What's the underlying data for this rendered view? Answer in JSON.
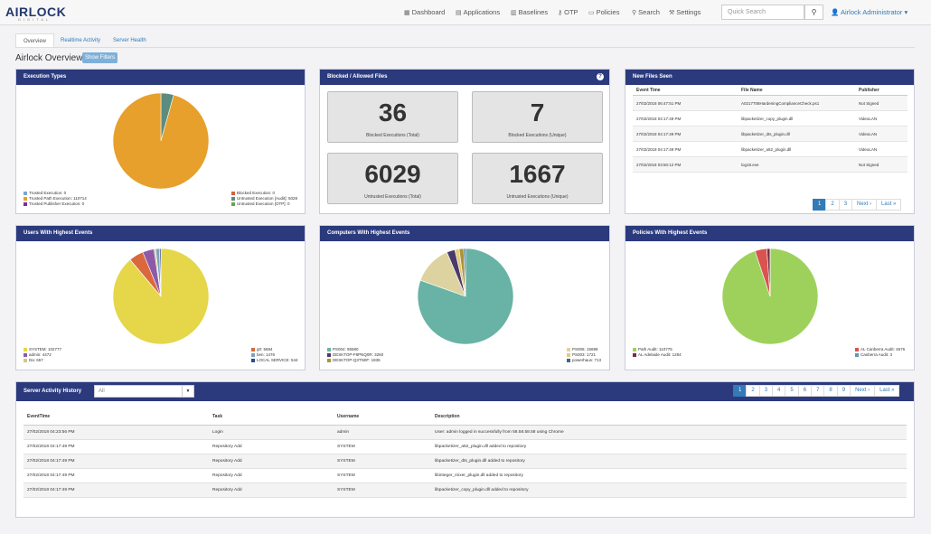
{
  "brand": {
    "name": "AIRLOCK",
    "sub": "DIGITAL"
  },
  "nav": [
    {
      "icon": "dashboard-icon",
      "glyph": "▦",
      "label": "Dashboard"
    },
    {
      "icon": "applications-icon",
      "glyph": "▤",
      "label": "Applications"
    },
    {
      "icon": "baselines-icon",
      "glyph": "▥",
      "label": "Baselines"
    },
    {
      "icon": "otp-icon",
      "glyph": "⚷",
      "label": "OTP"
    },
    {
      "icon": "policies-icon",
      "glyph": "▭",
      "label": "Policies"
    },
    {
      "icon": "search-icon",
      "glyph": "⚲",
      "label": "Search"
    },
    {
      "icon": "settings-icon",
      "glyph": "⚒",
      "label": "Settings"
    }
  ],
  "search": {
    "placeholder": "Quick Search"
  },
  "user": {
    "label": "Airlock Administrator"
  },
  "tabs": [
    "Overview",
    "Realtime Activity",
    "Server Health"
  ],
  "page": {
    "title": "Airlock Overview",
    "filter_button": "Show Filters"
  },
  "panels": {
    "execution_types": "Execution Types",
    "blocked_allowed": "Blocked / Allowed Files",
    "new_files": "New Files Seen",
    "users": "Users With Highest Events",
    "computers": "Computers With Highest Events",
    "policies": "Policies With Highest Events",
    "server_activity": "Server Activity History"
  },
  "charts": {
    "execution": {
      "slices": [
        {
          "label": "Trusted Execution: 0",
          "value": 0,
          "color": "#7aa7c7"
        },
        {
          "label": "Trusted Path Execution: 110714",
          "value": 110714,
          "color": "#e6a02b"
        },
        {
          "label": "Trusted Publisher Execution: 0",
          "value": 0,
          "color": "#7a30a0"
        },
        {
          "label": "Blocked Execution: 0",
          "value": 0,
          "color": "#d9623c"
        },
        {
          "label": "Untrusted Execution [Audit]: 5028",
          "value": 5028,
          "color": "#5a8c80"
        },
        {
          "label": "Untrusted Execution [OTP]: 0",
          "value": 0,
          "color": "#6aa34a"
        }
      ]
    },
    "users": {
      "slices": [
        {
          "label": "SYSTEM: 102777",
          "value": 102777,
          "color": "#e5d64a"
        },
        {
          "label": "admin: 4472",
          "value": 4472,
          "color": "#8e5aa8"
        },
        {
          "label": "Da: 657",
          "value": 657,
          "color": "#cfc98a"
        },
        {
          "label": "g0: 5684",
          "value": 5684,
          "color": "#d9683c"
        },
        {
          "label": "ben: 1476",
          "value": 1476,
          "color": "#7ea3b8"
        },
        {
          "label": "LOCAL SERVICE: 544",
          "value": 544,
          "color": "#2f4a8a"
        }
      ]
    },
    "computers": {
      "slices": [
        {
          "label": "PS004: 95580",
          "value": 95580,
          "color": "#68b3a5"
        },
        {
          "label": "DESKTOP-F8PNQ0R: 3260",
          "value": 3260,
          "color": "#4a3a6a"
        },
        {
          "label": "DESKTOP-Q3TN0F: 1836",
          "value": 1836,
          "color": "#a8943a"
        },
        {
          "label": "PS006: 15698",
          "value": 15698,
          "color": "#ddd3a0"
        },
        {
          "label": "PS003: 1721",
          "value": 1721,
          "color": "#e8c87a"
        },
        {
          "label": "powerhaus: 713",
          "value": 713,
          "color": "#3a6a8a"
        }
      ]
    },
    "policies": {
      "slices": [
        {
          "label": "Path Audit: 110775",
          "value": 110775,
          "color": "#9ed15c"
        },
        {
          "label": "AL Adelaide Audit: 1284",
          "value": 1284,
          "color": "#7a2a4a"
        },
        {
          "label": "AL Canberra Audit: 4676",
          "value": 4676,
          "color": "#d9534f"
        },
        {
          "label": "Canberra Audit: 3",
          "value": 3,
          "color": "#5a9ab5"
        }
      ]
    }
  },
  "stats": [
    {
      "value": "36",
      "label": "Blocked Executions (Total)"
    },
    {
      "value": "7",
      "label": "Blocked Executions (Unique)"
    },
    {
      "value": "6029",
      "label": "Untrusted Executions (Total)"
    },
    {
      "value": "1667",
      "label": "Untrusted Executions (Unique)"
    }
  ],
  "new_files": {
    "headers": [
      "Event Time",
      "File Name",
      "Publisher"
    ],
    "rows": [
      [
        "27/02/2018 06:47:51 PM",
        "A0217708HardeningComplianceCheck.ps1",
        "Not Signed"
      ],
      [
        "27/02/2018 04:17:49 PM",
        "libpacketizer_copy_plugin.dll",
        "VideoLAN"
      ],
      [
        "27/02/2018 04:17:49 PM",
        "libpacketizer_dts_plugin.dll",
        "VideoLAN"
      ],
      [
        "27/02/2018 04:17:49 PM",
        "libpacketizer_a52_plugin.dll",
        "VideoLAN"
      ],
      [
        "27/02/2018 03:50:12 PM",
        "log18.exe",
        "Not Signed"
      ]
    ],
    "pager": [
      "1",
      "2",
      "3",
      "Next ›",
      "Last »"
    ]
  },
  "activity": {
    "select_value": "All",
    "headers": [
      "EventTime",
      "Task",
      "Username",
      "Description"
    ],
    "rows": [
      [
        "27/02/2018 04:23:56 PM",
        "Login",
        "admin",
        "User: admin logged in successfully from 58.58.58.58 using Chrome"
      ],
      [
        "27/02/2018 04:17:49 PM",
        "Repository Add",
        "SYSTEM",
        "libpacketizer_a52_plugin.dll added to repository"
      ],
      [
        "27/02/2018 04:17:49 PM",
        "Repository Add",
        "SYSTEM",
        "libpacketizer_dts_plugin.dll added to repository"
      ],
      [
        "27/02/2018 04:17:49 PM",
        "Repository Add",
        "SYSTEM",
        "libinteger_mixer_plugin.dll added to repository"
      ],
      [
        "27/02/2018 04:17:49 PM",
        "Repository Add",
        "SYSTEM",
        "libpacketizer_copy_plugin.dll added to repository"
      ]
    ],
    "pager": [
      "1",
      "2",
      "3",
      "4",
      "5",
      "6",
      "7",
      "8",
      "9",
      "Next ›",
      "Last »"
    ]
  }
}
